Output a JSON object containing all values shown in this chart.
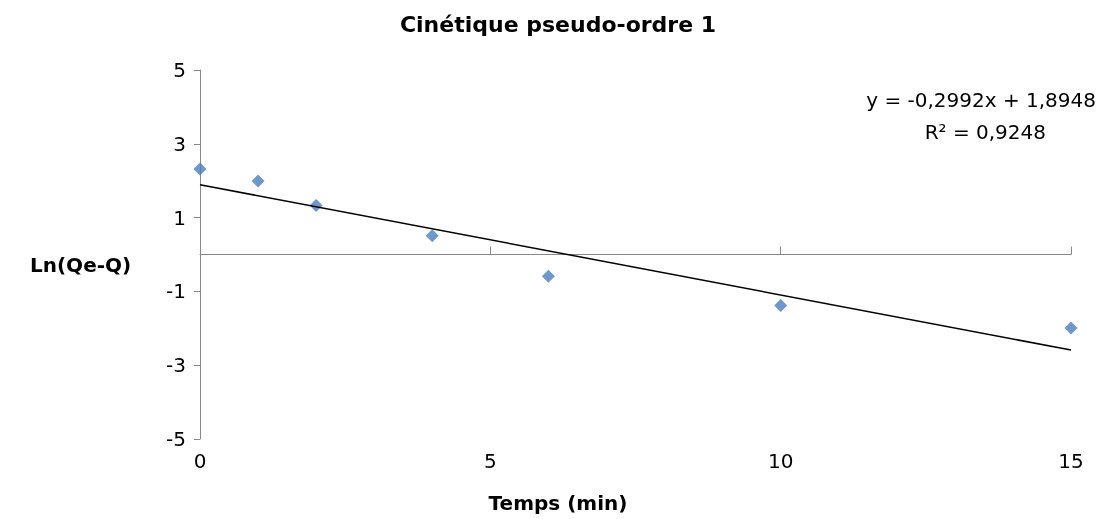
{
  "chart_data": {
    "type": "scatter",
    "title": "Cinétique pseudo-ordre 1",
    "xlabel": "Temps (min)",
    "ylabel": "Ln(Qe-Q)",
    "annotations": [
      "y = -0,2992x + 1,8948",
      "R² = 0,9248"
    ],
    "x": [
      0,
      1,
      2,
      4,
      6,
      10,
      15
    ],
    "series": [
      {
        "color": "#4a7ebb",
        "marker": "diamond",
        "values": [
          2.32,
          1.99,
          1.33,
          0.51,
          -0.59,
          -1.38,
          -1.99
        ]
      },
      {
        "type": "line",
        "color": "#000000",
        "marker": "none",
        "x": [
          0,
          15
        ],
        "values": [
          1.89,
          -2.59
        ]
      }
    ],
    "xlim": [
      0,
      15
    ],
    "xticks": [
      0,
      5,
      10,
      15
    ],
    "ylim": [
      -5,
      5
    ],
    "yticks": [
      -5,
      -3,
      -1,
      1,
      3,
      5
    ],
    "grid": false
  }
}
